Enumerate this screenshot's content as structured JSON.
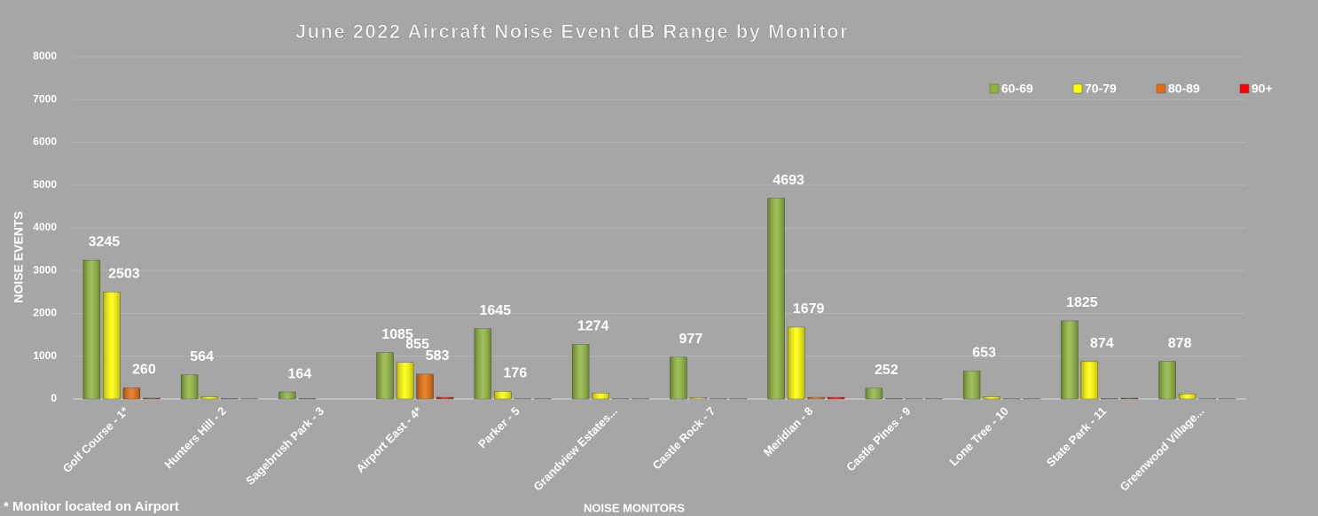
{
  "chart_data": {
    "type": "bar",
    "title": "June 2022 Aircraft Noise Event dB Range by Monitor",
    "x_label": "NOISE MONITORS",
    "y_label": "NOISE EVENTS",
    "note": "* Monitor located on Airport",
    "categories": [
      "Golf Course - 1*",
      "Hunters Hill - 2",
      "Sagebrush Park - 3",
      "Airport East - 4*",
      "Parker - 5",
      "Grandview Estates...",
      "Castle Rock - 7",
      "Meridian - 8",
      "Castle Pines - 9",
      "Lone Tree - 10",
      "State Park - 11",
      "Greenwood Village..."
    ],
    "series": [
      {
        "name": "60-69",
        "color": "#8fb53c",
        "values": [
          3245,
          564,
          164,
          1085,
          1645,
          1274,
          977,
          4693,
          252,
          653,
          1825,
          878
        ],
        "value_labels": [
          "3245",
          "564",
          "164",
          "1085",
          "1645",
          "1274",
          "977",
          "4693",
          "252",
          "653",
          "1825",
          "878"
        ]
      },
      {
        "name": "70-79",
        "color": "#ffff00",
        "values": [
          2503,
          50,
          10,
          855,
          176,
          140,
          30,
          1679,
          10,
          50,
          874,
          120
        ],
        "value_labels": [
          "2503",
          null,
          null,
          "855",
          "176",
          null,
          null,
          "1679",
          null,
          null,
          "874",
          null
        ]
      },
      {
        "name": "80-89",
        "color": "#e46c0a",
        "values": [
          260,
          10,
          0,
          583,
          5,
          5,
          5,
          40,
          5,
          5,
          10,
          5
        ],
        "value_labels": [
          "260",
          null,
          null,
          "583",
          null,
          null,
          null,
          null,
          null,
          null,
          null,
          null
        ]
      },
      {
        "name": "90+",
        "color": "#ff0000",
        "values": [
          20,
          5,
          0,
          40,
          5,
          5,
          5,
          40,
          5,
          5,
          20,
          5
        ],
        "value_labels": [
          null,
          null,
          null,
          null,
          null,
          null,
          null,
          null,
          null,
          null,
          null,
          null
        ]
      }
    ],
    "ylim": [
      0,
      8000
    ],
    "yticks": [
      0,
      1000,
      2000,
      3000,
      4000,
      5000,
      6000,
      7000,
      8000
    ],
    "grid": true,
    "legend": "top-right"
  }
}
